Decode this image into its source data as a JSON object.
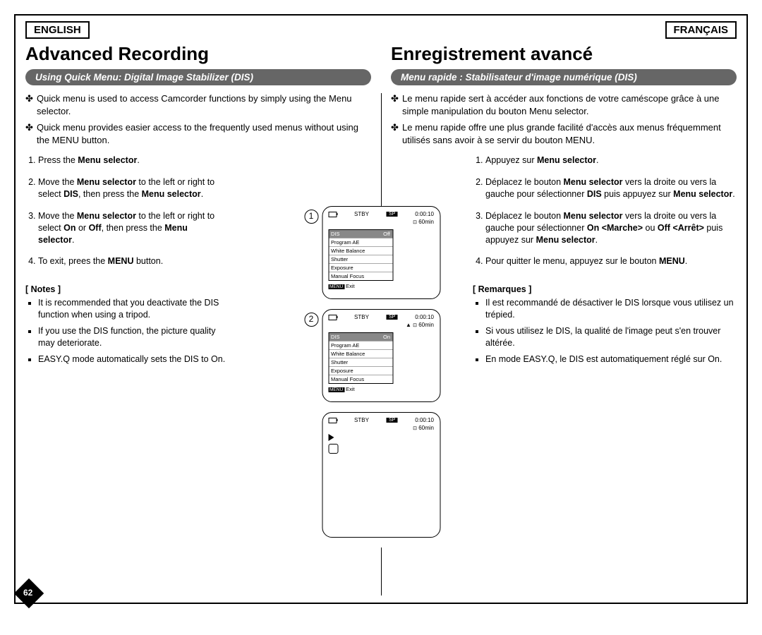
{
  "lang": {
    "en": "ENGLISH",
    "fr": "FRANÇAIS"
  },
  "en": {
    "title": "Advanced Recording",
    "subbar": "Using Quick Menu: Digital Image Stabilizer (DIS)",
    "bullets": [
      "Quick menu is used to access Camcorder functions by simply using the Menu selector.",
      "Quick menu provides easier access to the frequently used menus without using the MENU button."
    ],
    "steps": [
      "Press the <b>Menu selector</b>.",
      "Move the <b>Menu selector</b> to the left or right to select <b>DIS</b>, then press the <b>Menu selector</b>.",
      "Move the <b>Menu selector</b> to the left or right to select <b>On</b> or <b>Off</b>, then press the <b>Menu selector</b>.",
      "To exit, prees the <b>MENU</b> button."
    ],
    "notes_label": "[ Notes ]",
    "notes": [
      "It is recommended that you deactivate the DIS function when using a tripod.",
      "If you use the DIS function, the picture quality may deteriorate.",
      "EASY.Q mode automatically sets the DIS to On."
    ]
  },
  "fr": {
    "title": "Enregistrement avancé",
    "subbar": "Menu rapide : Stabilisateur d'image numérique (DIS)",
    "bullets": [
      "Le menu rapide sert à accéder aux fonctions de votre caméscope grâce à une simple manipulation du bouton Menu selector.",
      "Le menu rapide offre une plus grande facilité d'accès aux menus fréquemment utilisés sans avoir à se servir du bouton MENU."
    ],
    "steps": [
      "Appuyez sur <b>Menu selector</b>.",
      "Déplacez le bouton <b>Menu selector</b> vers la droite ou vers la gauche pour sélectionner <b>DIS</b> puis appuyez sur <b>Menu selector</b>.",
      "Déplacez le bouton <b>Menu selector</b> vers la droite ou vers la gauche pour sélectionner <b>On &lt;Marche&gt;</b> ou <b>Off &lt;Arrêt&gt;</b> puis appuyez sur <b>Menu selector</b>.",
      "Pour quitter le menu, appuyez sur le bouton <b>MENU</b>."
    ],
    "notes_label": "[ Remarques ]",
    "notes": [
      "Il est recommandé de désactiver le DIS lorsque vous utilisez un trépied.",
      "Si vous utilisez le DIS, la qualité de l'image peut s'en trouver altérée.",
      "En mode EASY.Q, le DIS est automatiquement réglé sur On."
    ]
  },
  "lcd": {
    "stby": "STBY",
    "sp": "SP",
    "time": "0:00:10",
    "remain": "60min",
    "menu_hdr": "DIS",
    "off": "Off",
    "on": "On",
    "items": [
      "Program AE",
      "White Balance",
      "Shutter",
      "Exposure",
      "Manual Focus"
    ],
    "exit_btn": "MENU",
    "exit": "Exit"
  },
  "page_number": "62"
}
